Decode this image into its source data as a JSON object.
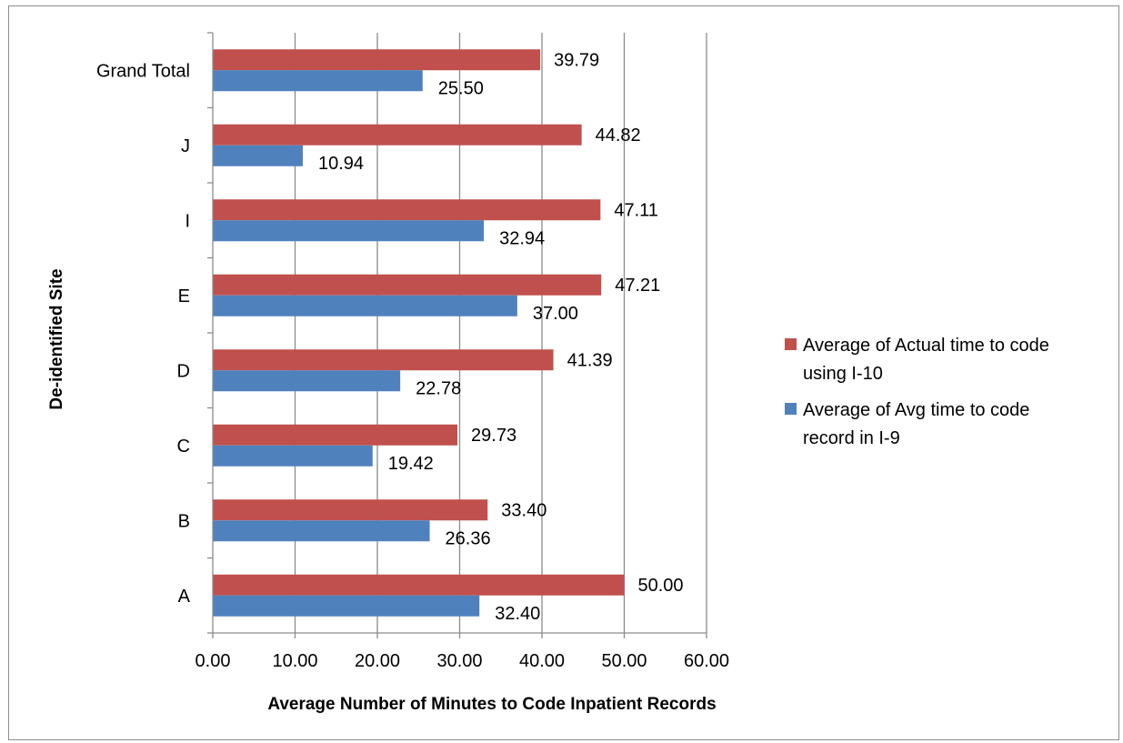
{
  "chart_data": {
    "type": "bar",
    "orientation": "horizontal",
    "title": "",
    "xlabel": "Average Number of Minutes to Code Inpatient Records",
    "ylabel": "De-identified Site",
    "xlim": [
      0,
      60
    ],
    "xticks": [
      "0.00",
      "10.00",
      "20.00",
      "30.00",
      "40.00",
      "50.00",
      "60.00"
    ],
    "x_gridlines": true,
    "legend_position": "right",
    "categories": [
      "A",
      "B",
      "C",
      "D",
      "E",
      "I",
      "J",
      "Grand Total"
    ],
    "series": [
      {
        "name": "Average of Actual time to code using I-10",
        "legend_lines": [
          "Average of Actual time to code",
          "using I-10"
        ],
        "color": "#c0504d",
        "values": [
          50.0,
          33.4,
          29.73,
          41.39,
          47.21,
          47.11,
          44.82,
          39.79
        ],
        "labels": [
          "50.00",
          "33.40",
          "29.73",
          "41.39",
          "47.21",
          "47.11",
          "44.82",
          "39.79"
        ]
      },
      {
        "name": "Average of Avg time to code record in I-9",
        "legend_lines": [
          "Average of Avg time to code",
          "record in I-9"
        ],
        "color": "#4f81bd",
        "values": [
          32.4,
          26.36,
          19.42,
          22.78,
          37.0,
          32.94,
          10.94,
          25.5
        ],
        "labels": [
          "32.40",
          "26.36",
          "19.42",
          "22.78",
          "37.00",
          "32.94",
          "10.94",
          "25.50"
        ]
      }
    ]
  }
}
